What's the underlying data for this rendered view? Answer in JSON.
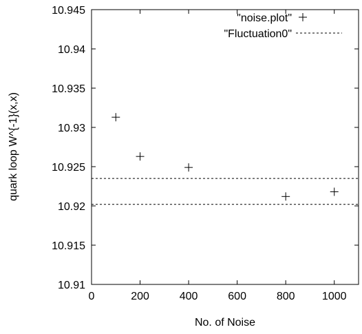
{
  "chart_data": {
    "type": "scatter",
    "xlabel": "No. of Noise",
    "ylabel": "quark loop W^{-1}(x,x)",
    "xlim": [
      0,
      1100
    ],
    "ylim": [
      10.91,
      10.945
    ],
    "x_ticks": [
      0,
      200,
      400,
      600,
      800,
      1000
    ],
    "x_tick_labels": [
      "0",
      "200",
      "400",
      "600",
      "800",
      "1000"
    ],
    "y_ticks": [
      10.91,
      10.915,
      10.92,
      10.925,
      10.93,
      10.935,
      10.94,
      10.945
    ],
    "y_tick_labels": [
      "10.91",
      "10.915",
      "10.92",
      "10.925",
      "10.93",
      "10.935",
      "10.94",
      "10.945"
    ],
    "grid": false,
    "legend_position": "top-right",
    "series": [
      {
        "name": "\"noise.plot\"",
        "style": "plus-markers",
        "x": [
          100,
          200,
          400,
          800,
          1000
        ],
        "y": [
          10.9313,
          10.9263,
          10.9249,
          10.9212,
          10.9218
        ]
      },
      {
        "name": "\"Fluctuation0\"",
        "style": "dashed-horizontal-band",
        "levels": [
          10.9235,
          10.9202
        ]
      }
    ]
  }
}
